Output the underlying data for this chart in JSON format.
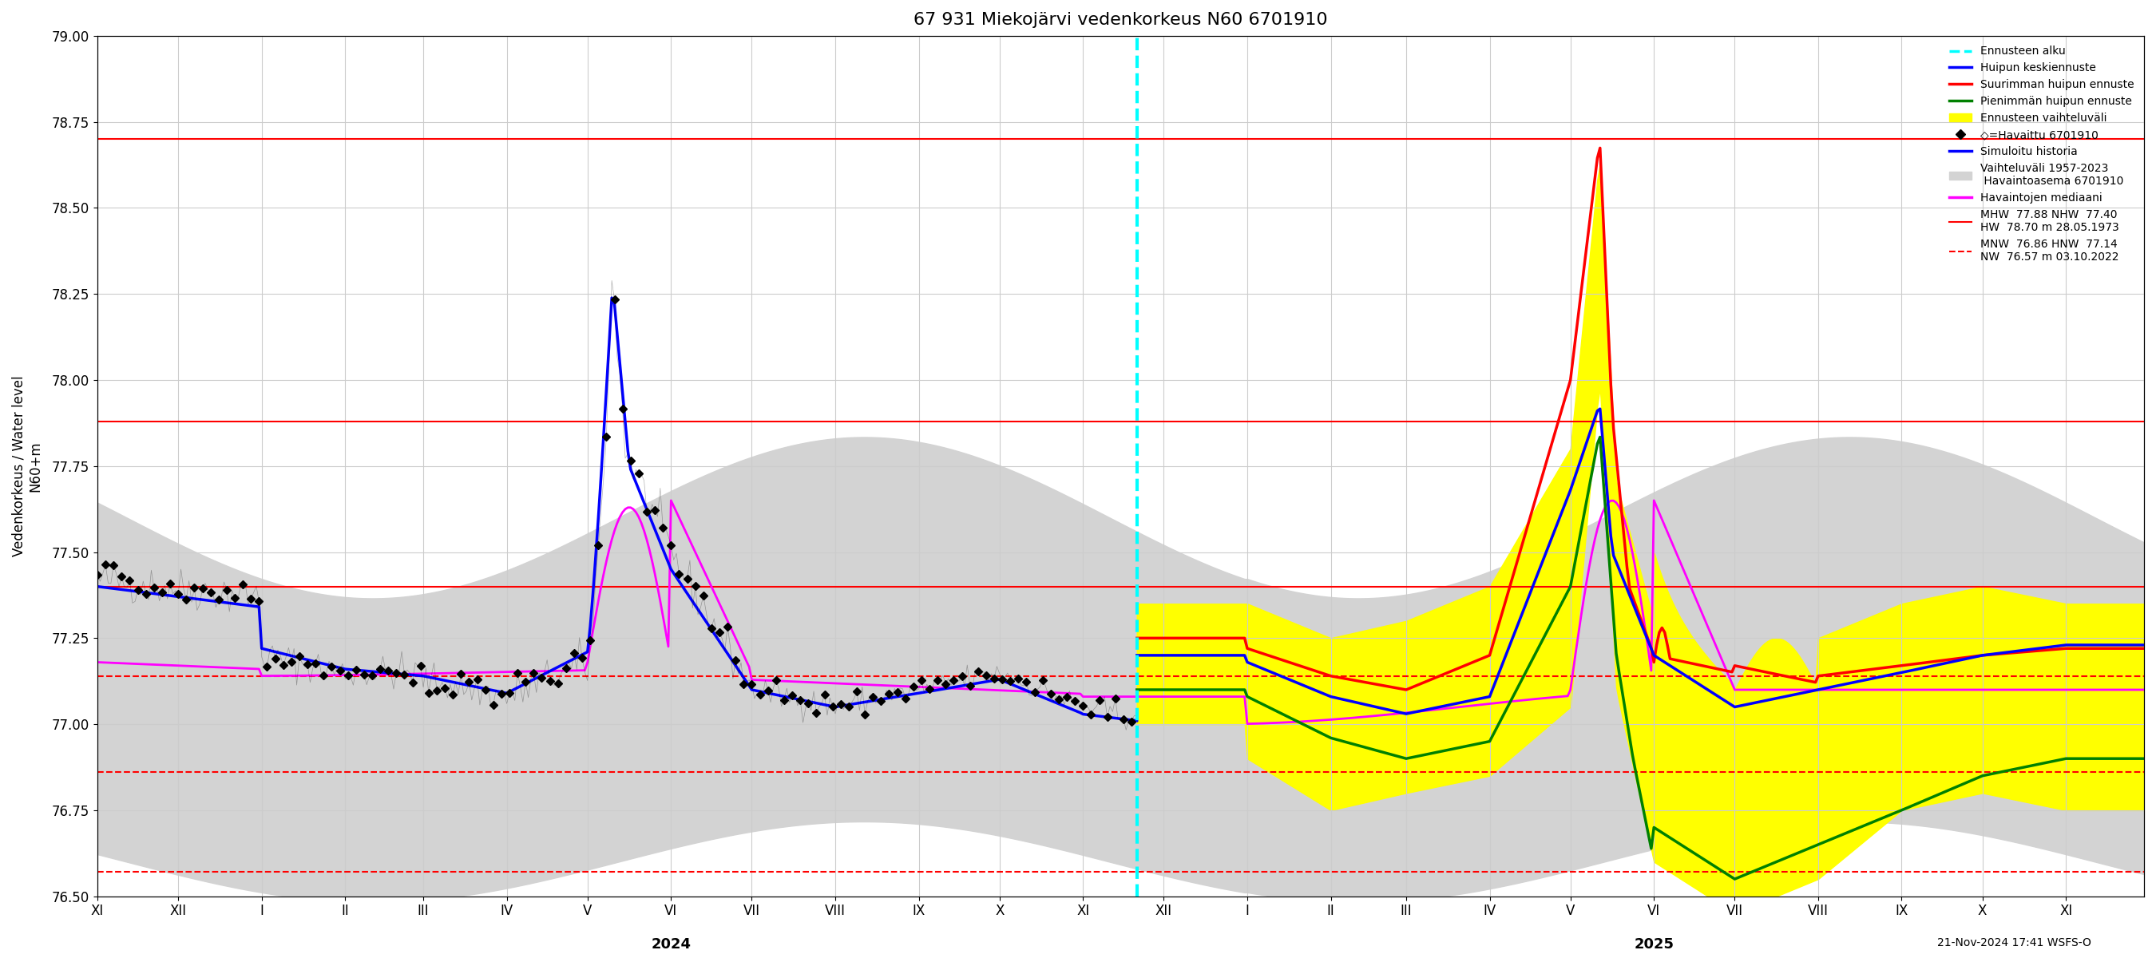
{
  "title": "67 931 Miekojärvi vedenkorkeus N60 6701910",
  "ylabel": "Vedenkorkeus / Water level",
  "ylabel2": "N60+m",
  "ylim": [
    76.5,
    79.0
  ],
  "yticks": [
    76.5,
    76.75,
    77.0,
    77.25,
    77.5,
    77.75,
    78.0,
    78.25,
    78.5,
    78.75,
    79.0
  ],
  "xlabel_bottom": "21-Nov-2024 17:41 WSFS-O",
  "forecast_start": "2024-11-21",
  "red_solid_lines": [
    78.7,
    77.88,
    77.4
  ],
  "red_dashed_lines": [
    77.14,
    76.86,
    76.57
  ],
  "legend_labels": [
    "Ennusteen alku",
    "Huipun keskiennuste",
    "Suurimman huipun ennuste",
    "Pienimmän huipun ennuste",
    "Ennusteen vaihteluväli",
    "◇=Havaittu 6701910",
    "Simuloitu historia",
    "Vaihteluväli 1957-2023\n Havaintoasema 6701910",
    "Havaintojen mediaani",
    "MHW  77.88 NHW  77.40\nHW  78.70 m 28.05.1973",
    "MNW  76.86 HNW  77.14\nNW  76.57 m 03.10.2022"
  ],
  "legend_colors": [
    "cyan",
    "blue",
    "red",
    "green",
    "yellow",
    "black",
    "blue",
    "lightgray",
    "magenta",
    "red",
    "red"
  ],
  "background_color": "white",
  "grid_color": "#aaaaaa"
}
